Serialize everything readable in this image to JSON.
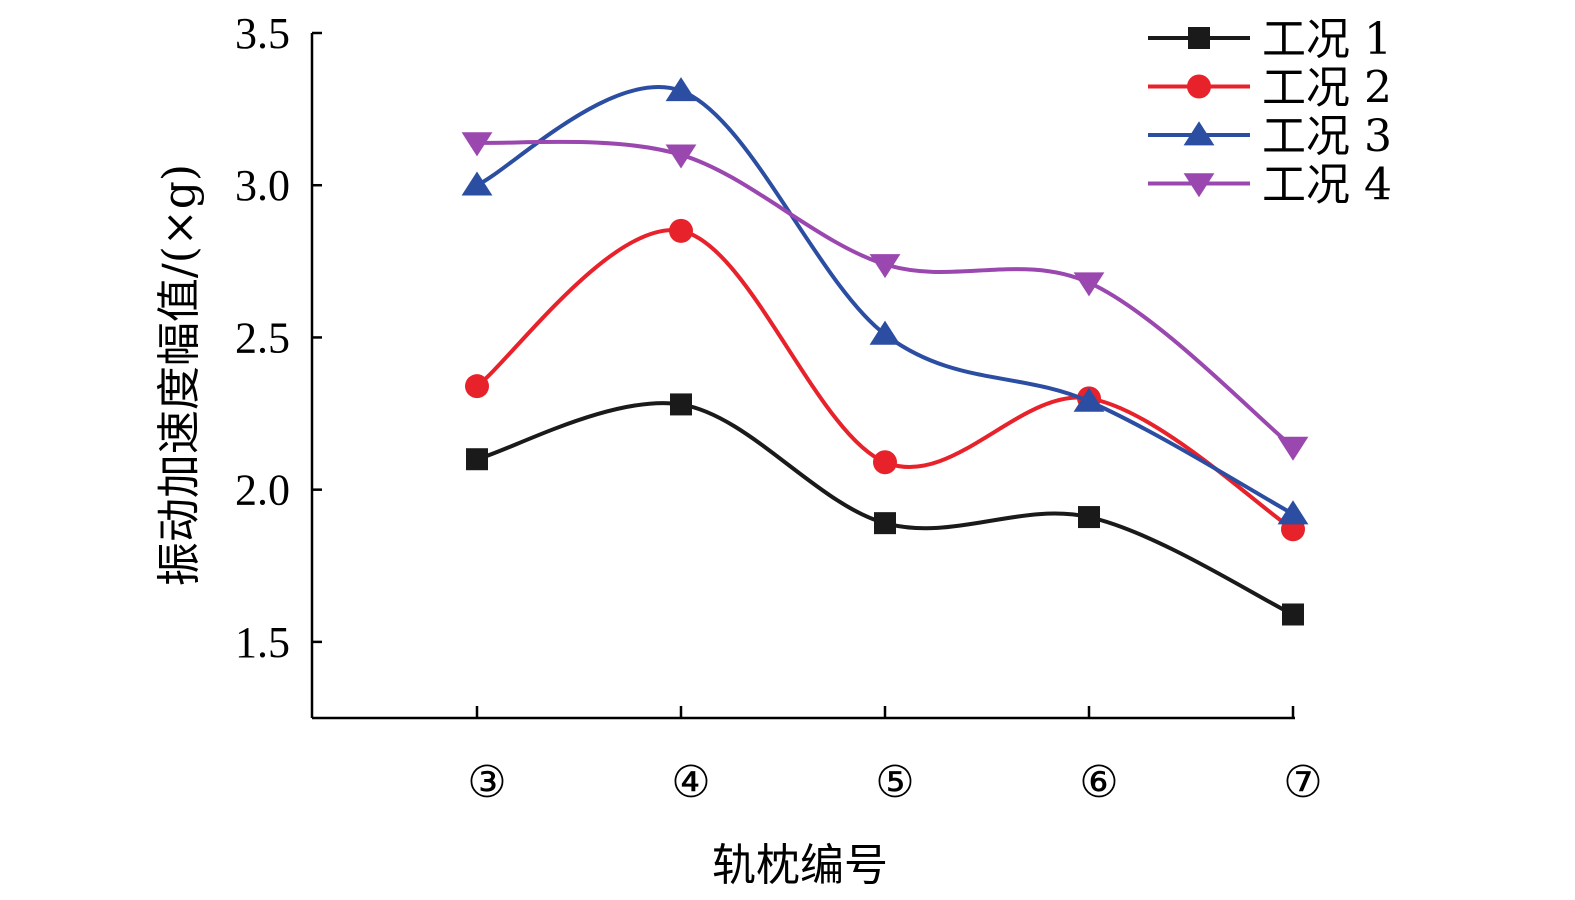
{
  "chart_data": {
    "type": "line",
    "xlabel": "轨枕编号",
    "ylabel": "振动加速度幅值/(×g)",
    "categories": [
      "③",
      "④",
      "⑤",
      "⑥",
      "⑦"
    ],
    "ylim": [
      1.25,
      3.5
    ],
    "yticks": [
      1.5,
      2.0,
      2.5,
      3.0,
      3.5
    ],
    "ytick_labels": [
      "1.5",
      "2.0",
      "2.5",
      "3.0",
      "3.5"
    ],
    "smooth": true,
    "grid": false,
    "legend_position": "top-right",
    "series": [
      {
        "name": "工况 1",
        "color": "#1a1a1a",
        "marker": "square",
        "values": [
          2.1,
          2.28,
          1.89,
          1.91,
          1.59
        ]
      },
      {
        "name": "工况 2",
        "color": "#e8222b",
        "marker": "circle",
        "values": [
          2.34,
          2.85,
          2.09,
          2.3,
          1.87
        ]
      },
      {
        "name": "工况 3",
        "color": "#2b4ea2",
        "marker": "triangle-up",
        "values": [
          3.0,
          3.31,
          2.51,
          2.29,
          1.92
        ]
      },
      {
        "name": "工况 4",
        "color": "#9b47b0",
        "marker": "triangle-down",
        "values": [
          3.14,
          3.1,
          2.74,
          2.68,
          2.14
        ]
      }
    ]
  }
}
